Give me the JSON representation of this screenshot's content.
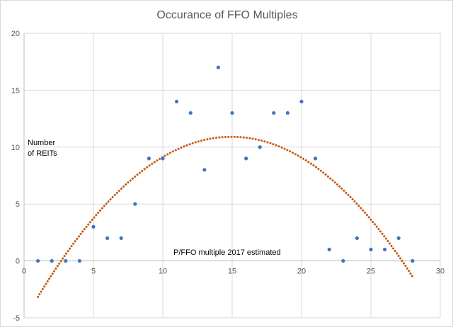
{
  "chart_data": {
    "type": "scatter",
    "title": "Occurance of FFO Multiples",
    "xlim": [
      0,
      30
    ],
    "ylim": [
      -5,
      20
    ],
    "x_ticks": [
      0,
      5,
      10,
      15,
      20,
      25,
      30
    ],
    "y_ticks": [
      -5,
      0,
      5,
      10,
      15,
      20
    ],
    "grid": "vertical and horizontal",
    "annotations": {
      "y_note_line1": "Number",
      "y_note_line2": "of REITs",
      "x_note": "P/FFO multiple 2017 estimated"
    },
    "series": [
      {
        "marker_color": "#4472c4",
        "points": [
          {
            "x": 1,
            "y": 0
          },
          {
            "x": 2,
            "y": 0
          },
          {
            "x": 3,
            "y": 0
          },
          {
            "x": 4,
            "y": 0
          },
          {
            "x": 5,
            "y": 3
          },
          {
            "x": 6,
            "y": 2
          },
          {
            "x": 7,
            "y": 2
          },
          {
            "x": 8,
            "y": 5
          },
          {
            "x": 9,
            "y": 9
          },
          {
            "x": 10,
            "y": 9
          },
          {
            "x": 11,
            "y": 14
          },
          {
            "x": 12,
            "y": 13
          },
          {
            "x": 13,
            "y": 8
          },
          {
            "x": 14,
            "y": 17
          },
          {
            "x": 15,
            "y": 13
          },
          {
            "x": 16,
            "y": 9
          },
          {
            "x": 17,
            "y": 10
          },
          {
            "x": 18,
            "y": 13
          },
          {
            "x": 19,
            "y": 13
          },
          {
            "x": 20,
            "y": 14
          },
          {
            "x": 21,
            "y": 9
          },
          {
            "x": 22,
            "y": 1
          },
          {
            "x": 23,
            "y": 0
          },
          {
            "x": 24,
            "y": 2
          },
          {
            "x": 25,
            "y": 1
          },
          {
            "x": 26,
            "y": 1
          },
          {
            "x": 27,
            "y": 2
          },
          {
            "x": 28,
            "y": 0
          }
        ]
      }
    ],
    "trendline": {
      "type": "polynomial",
      "color": "#c55a11",
      "style": "dotted",
      "coefficients": [
        -5.25,
        2.16,
        -0.0722
      ],
      "x_range": [
        1,
        28
      ]
    }
  }
}
